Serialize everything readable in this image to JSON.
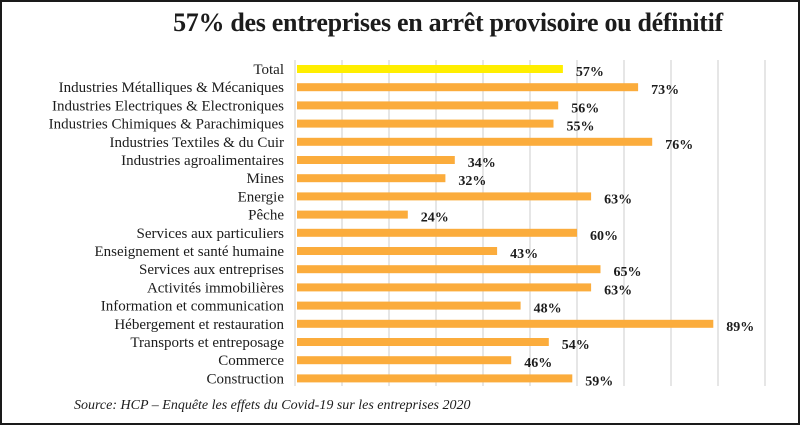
{
  "chart_data": {
    "type": "bar",
    "orientation": "horizontal",
    "title": "57% des entreprises en arrêt provisoire ou définitif",
    "xlabel": "",
    "ylabel": "",
    "xlim": [
      0,
      100
    ],
    "grid": true,
    "grid_step": 10,
    "categories": [
      "Total",
      "Industries Métalliques & Mécaniques",
      "Industries Electriques & Electroniques",
      "Industries Chimiques & Parachimiques",
      "Industries Textiles & du Cuir",
      "Industries agroalimentaires",
      "Mines",
      "Energie",
      "Pêche",
      "Services aux particuliers",
      "Enseignement et santé humaine",
      "Services aux entreprises",
      "Activités immobilières",
      "Information et communication",
      "Hébergement et restauration",
      "Transports et entreposage",
      "Commerce",
      "Construction"
    ],
    "values": [
      57,
      73,
      56,
      55,
      76,
      34,
      32,
      63,
      24,
      60,
      43,
      65,
      63,
      48,
      89,
      54,
      46,
      59
    ],
    "value_labels": [
      "57%",
      "73%",
      "56%",
      "55%",
      "76%",
      "34%",
      "32%",
      "63%",
      "24%",
      "60%",
      "43%",
      "65%",
      "63%",
      "48%",
      "89%",
      "54%",
      "46%",
      "59%"
    ],
    "colors": {
      "highlight": "#ffee00",
      "default": "#fbac3c",
      "grid": "#dedede"
    },
    "highlight_index": 0,
    "source": "Source: HCP – Enquête les effets du Covid-19 sur les entreprises 2020"
  }
}
